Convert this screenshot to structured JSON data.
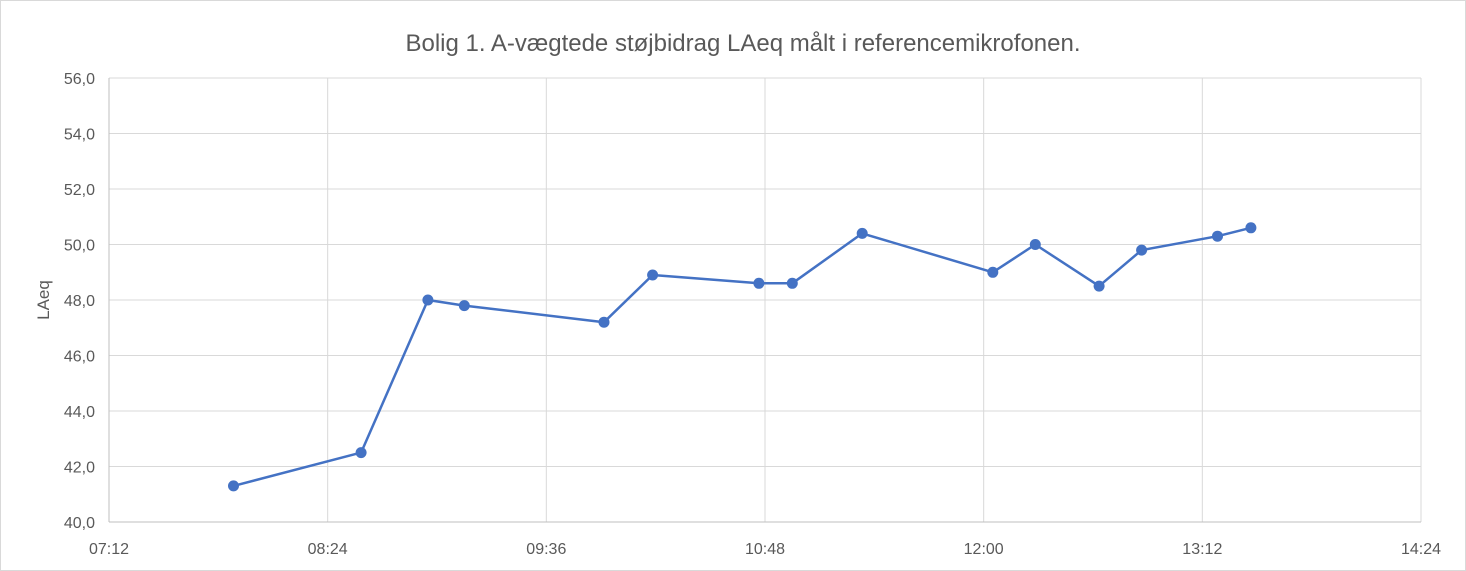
{
  "chart_data": {
    "type": "scatter",
    "title": "Bolig 1. A-vægtede støjbidrag LAeq målt i referencemikrofonen.",
    "xlabel": "",
    "ylabel": "LAeq",
    "xlim": [
      "07:12",
      "14:24"
    ],
    "ylim": [
      40,
      56
    ],
    "x_ticks": [
      "07:12",
      "08:24",
      "09:36",
      "10:48",
      "12:00",
      "13:12",
      "14:24"
    ],
    "y_ticks": [
      "40,0",
      "42,0",
      "44,0",
      "46,0",
      "48,0",
      "50,0",
      "52,0",
      "54,0",
      "56,0"
    ],
    "grid": true,
    "legend": "none",
    "markers": true,
    "line": true,
    "series": [
      {
        "color": "#4472c4",
        "x": [
          "07:53",
          "08:35",
          "08:57",
          "09:09",
          "09:55",
          "10:11",
          "10:46",
          "10:57",
          "11:20",
          "12:03",
          "12:17",
          "12:38",
          "12:52",
          "13:17",
          "13:28"
        ],
        "y": [
          41.3,
          42.5,
          48.0,
          47.8,
          47.2,
          48.9,
          48.6,
          48.6,
          50.4,
          49.0,
          50.0,
          48.5,
          49.8,
          50.3,
          50.6
        ]
      }
    ]
  }
}
